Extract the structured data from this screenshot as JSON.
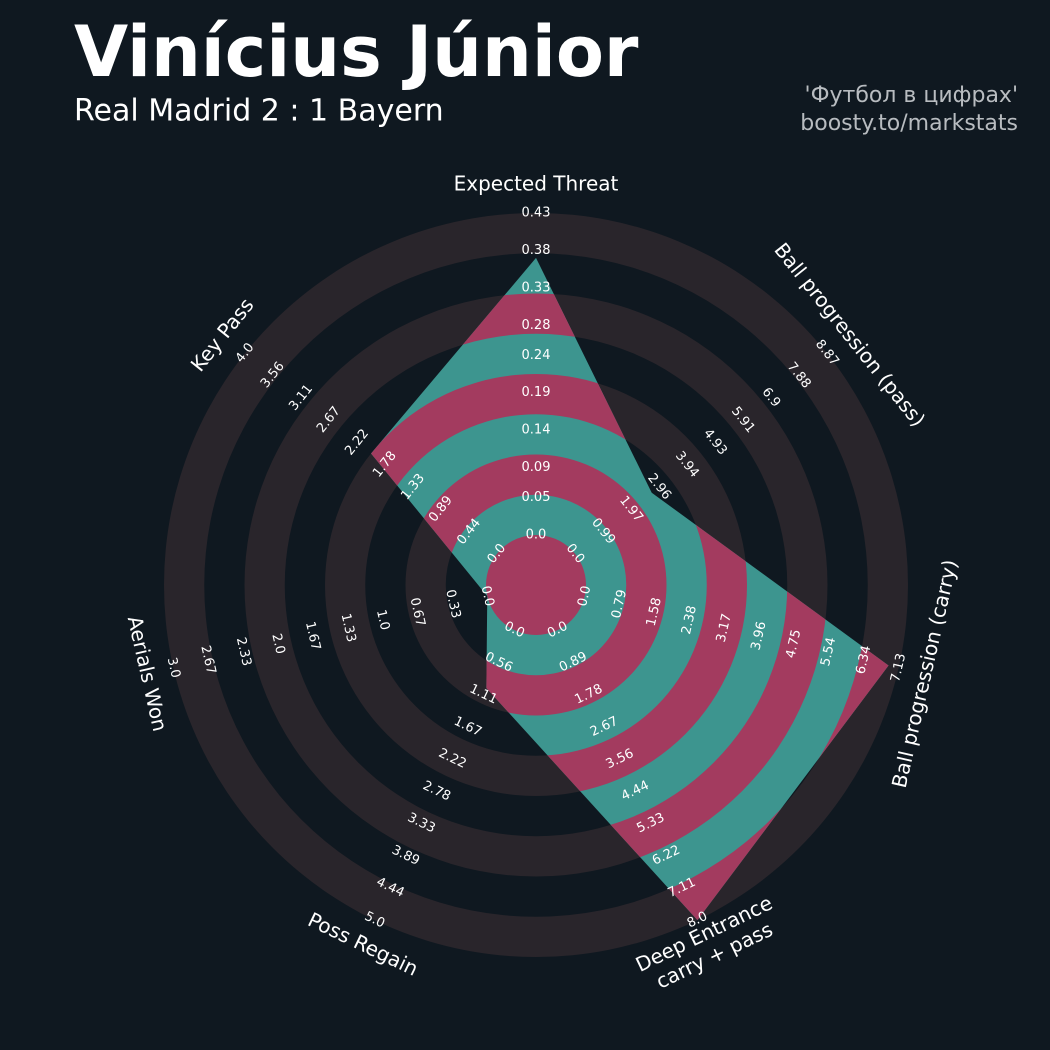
{
  "chart_data": {
    "type": "radar",
    "title": "Vinícius Júnior",
    "subtitle": "Real Madrid 2 : 1 Bayern",
    "credits": [
      "'Футбол в цифрах'",
      "boosty.to/markstats"
    ],
    "categories": [
      "Expected Threat",
      "Ball progression (pass)",
      "Ball progression (carry)",
      "Deep Entrance\ncarry + pass",
      "Poss Regain",
      "Aerials Won",
      "Key Pass"
    ],
    "values": [
      0.37,
      2.7,
      6.9,
      8.0,
      1.0,
      0,
      2.0
    ],
    "axes": [
      {
        "lim": [
          0,
          0.43
        ],
        "ticks": [
          {
            "value": 0,
            "label": "0.0"
          },
          0.05,
          0.09,
          0.14,
          0.19,
          0.24,
          0.28,
          0.33,
          0.38,
          0.43
        ]
      },
      {
        "lim": [
          0,
          8.87
        ],
        "ticks": [
          {
            "value": 0,
            "label": "0.0"
          },
          0.99,
          1.97,
          2.96,
          3.94,
          4.93,
          5.91,
          6.9,
          7.88,
          8.87
        ]
      },
      {
        "lim": [
          0,
          7.13
        ],
        "ticks": [
          {
            "value": 0,
            "label": "0.0"
          },
          0.79,
          1.58,
          2.38,
          3.17,
          3.96,
          4.75,
          5.54,
          6.34,
          7.13
        ]
      },
      {
        "lim": [
          0,
          8
        ],
        "ticks": [
          {
            "value": 0,
            "label": "0.0"
          },
          0.89,
          1.78,
          2.67,
          3.56,
          4.44,
          5.33,
          6.22,
          7.11,
          {
            "value": 8,
            "label": "8.0"
          }
        ]
      },
      {
        "lim": [
          0,
          5
        ],
        "ticks": [
          {
            "value": 0,
            "label": "0.0"
          },
          0.56,
          1.11,
          1.67,
          2.22,
          2.78,
          3.33,
          3.89,
          4.44,
          {
            "value": 5,
            "label": "5.0"
          }
        ]
      },
      {
        "lim": [
          0,
          3
        ],
        "ticks": [
          {
            "value": 0,
            "label": "0.0"
          },
          0.33,
          0.67,
          {
            "value": 1,
            "label": "1.0"
          },
          1.33,
          1.67,
          {
            "value": 2,
            "label": "2.0"
          },
          2.33,
          2.67,
          {
            "value": 3,
            "label": "3.0"
          }
        ]
      },
      {
        "lim": [
          0,
          4
        ],
        "ticks": [
          {
            "value": 0,
            "label": "0.0"
          },
          0.44,
          0.89,
          1.33,
          1.78,
          2.22,
          2.67,
          3.11,
          3.56,
          {
            "value": 4,
            "label": "4.0"
          }
        ]
      }
    ],
    "colors": {
      "background": "#0f1820",
      "ring": "#29252b",
      "fill": "#3d958f",
      "fill_ring": "#a33b5f"
    }
  }
}
